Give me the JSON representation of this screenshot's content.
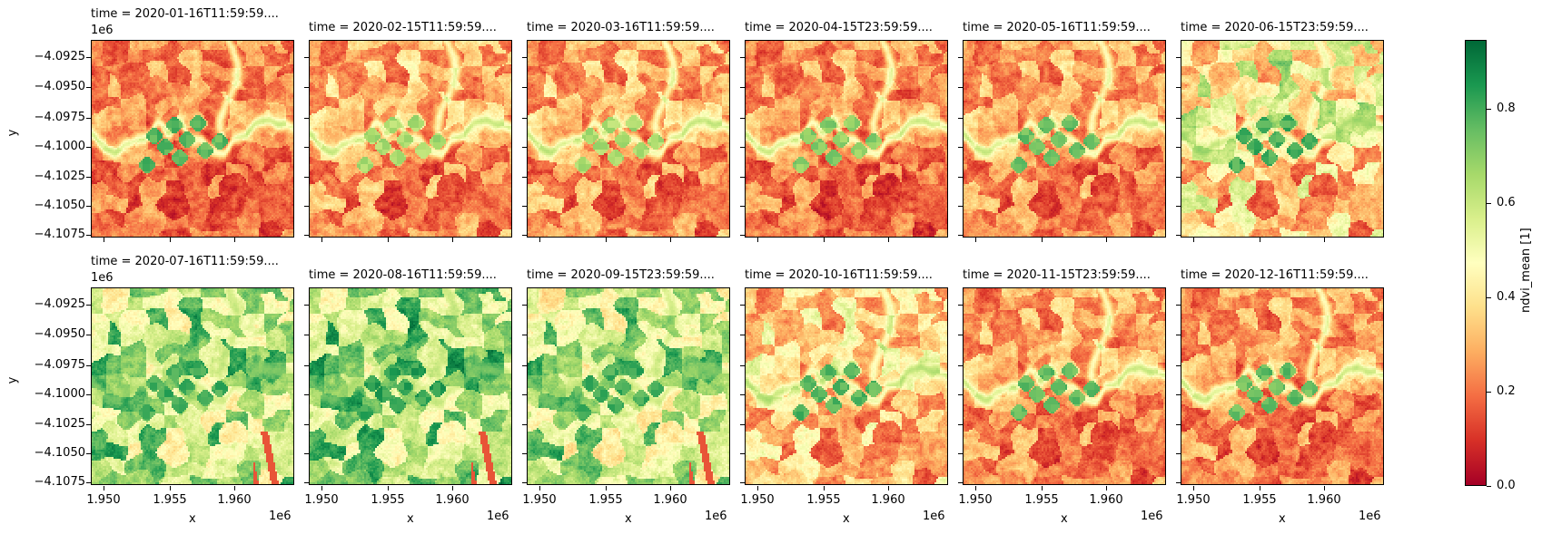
{
  "chart_data": {
    "type": "heatmap",
    "title": "",
    "layout": {
      "rows": 2,
      "cols": 6,
      "colorbar_position": "right"
    },
    "colormap": "RdYlGn",
    "colorbar": {
      "label": "ndvi_mean [1]",
      "range": [
        0.0,
        0.946
      ],
      "ticks": [
        "0.0",
        "0.2",
        "0.4",
        "0.6",
        "0.8"
      ],
      "tick_values": [
        0.0,
        0.2,
        0.4,
        0.6,
        0.8
      ],
      "colors": [
        "#a50026",
        "#d73027",
        "#f46d43",
        "#fdae61",
        "#fee08b",
        "#ffffbf",
        "#d9ef8b",
        "#a6d96a",
        "#66bd63",
        "#1a9850",
        "#006837"
      ]
    },
    "xlabel": "x",
    "ylabel": "y",
    "x_offset_label": "1e6",
    "y_offset_label": "1e6",
    "xlim": [
      1.9489,
      1.9644
    ],
    "ylim": [
      -4.1078,
      -4.0908
    ],
    "xticks": [
      "1.950",
      "1.955",
      "1.960"
    ],
    "yticks": [
      "−4.0925",
      "−4.0950",
      "−4.0975",
      "−4.1000",
      "−4.1025",
      "−4.1050",
      "−4.1075"
    ],
    "panels": [
      {
        "title": "time = 2020-01-16T11:59:59....",
        "time": "2020-01-16",
        "mean_ndvi_est": 0.25
      },
      {
        "title": "time = 2020-02-15T11:59:59....",
        "time": "2020-02-15",
        "mean_ndvi_est": 0.3
      },
      {
        "title": "time = 2020-03-16T11:59:59....",
        "time": "2020-03-16",
        "mean_ndvi_est": 0.3
      },
      {
        "title": "time = 2020-04-15T23:59:59....",
        "time": "2020-04-15",
        "mean_ndvi_est": 0.26
      },
      {
        "title": "time = 2020-05-16T11:59:59....",
        "time": "2020-05-16",
        "mean_ndvi_est": 0.29
      },
      {
        "title": "time = 2020-06-15T23:59:59....",
        "time": "2020-06-15",
        "mean_ndvi_est": 0.45
      },
      {
        "title": "time = 2020-07-16T11:59:59....",
        "time": "2020-07-16",
        "mean_ndvi_est": 0.66
      },
      {
        "title": "time = 2020-08-16T11:59:59....",
        "time": "2020-08-16",
        "mean_ndvi_est": 0.68
      },
      {
        "title": "time = 2020-09-15T23:59:59....",
        "time": "2020-09-15",
        "mean_ndvi_est": 0.64
      },
      {
        "title": "time = 2020-10-16T11:59:59....",
        "time": "2020-10-16",
        "mean_ndvi_est": 0.38
      },
      {
        "title": "time = 2020-11-15T23:59:59....",
        "time": "2020-11-15",
        "mean_ndvi_est": 0.28
      },
      {
        "title": "time = 2020-12-16T11:59:59....",
        "time": "2020-12-16",
        "mean_ndvi_est": 0.27
      }
    ]
  }
}
